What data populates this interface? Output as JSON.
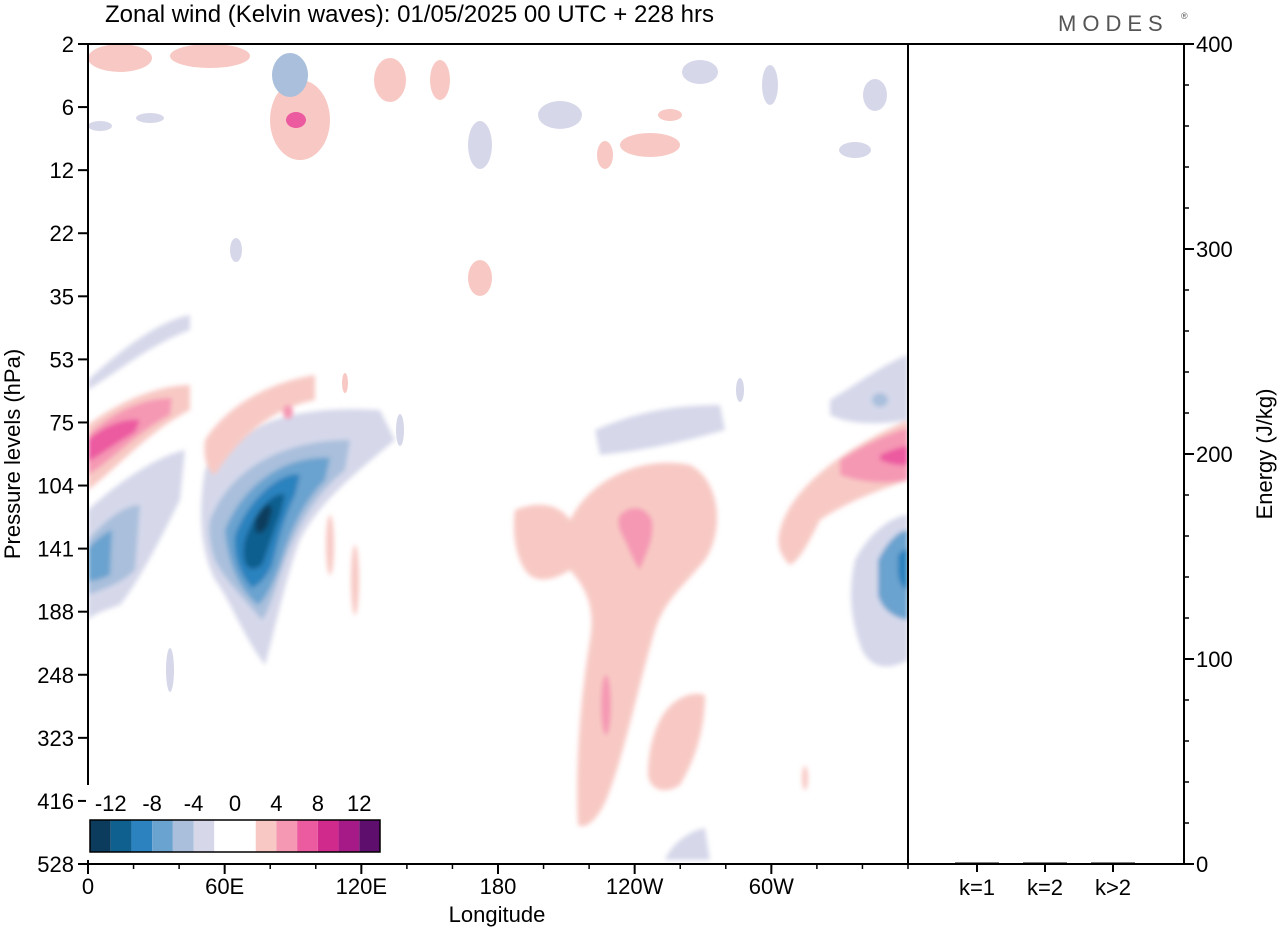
{
  "title": "Zonal wind (Kelvin waves):  01/05/2025  00 UTC  + 228 hrs",
  "brand": "MODES",
  "brand_mark": "®",
  "chart_data": [
    {
      "type": "heatmap",
      "xlabel": "Longitude",
      "ylabel": "Pressure levels (hPa)",
      "x_ticks": [
        "0",
        "60E",
        "120E",
        "180",
        "120W",
        "60W"
      ],
      "y_ticks": [
        "2",
        "6",
        "12",
        "22",
        "35",
        "53",
        "75",
        "104",
        "141",
        "188",
        "248",
        "323",
        "416",
        "528"
      ],
      "colorbar": {
        "labels": [
          "-12",
          "-8",
          "-4",
          "0",
          "4",
          "8",
          "12"
        ],
        "colors": [
          "#0b3c5d",
          "#0f5f8f",
          "#2b82be",
          "#6aa3cf",
          "#a9bfdc",
          "#d6d8ea",
          "#ffffff",
          "#ffffff",
          "#f8c9c4",
          "#f598b4",
          "#ec5aa0",
          "#cf2a8c",
          "#a51a86",
          "#5e0f6e"
        ]
      },
      "anomalies": [
        {
          "lon_start": 0,
          "lon_end": 35,
          "p_center": 90,
          "value": 9
        },
        {
          "lon_start": 0,
          "lon_end": 30,
          "p_center": 145,
          "value": -5
        },
        {
          "lon_start": 55,
          "lon_end": 95,
          "p_center": 130,
          "value": -11
        },
        {
          "lon_start": 55,
          "lon_end": 90,
          "p_center": 80,
          "value": 4
        },
        {
          "lon_start": 195,
          "lon_end": 255,
          "p_center": 160,
          "value": 5
        },
        {
          "lon_start": 340,
          "lon_end": 360,
          "p_center": 95,
          "value": 7
        },
        {
          "lon_start": 340,
          "lon_end": 360,
          "p_center": 150,
          "value": -6
        }
      ]
    },
    {
      "type": "bar",
      "categories": [
        "k=1",
        "k=2",
        "k>2"
      ],
      "values": [
        0.6,
        0.2,
        0.3
      ],
      "ylabel": "Energy (J/kg)",
      "ylim": [
        0,
        400
      ],
      "y_ticks": [
        "0",
        "100",
        "200",
        "300",
        "400"
      ]
    }
  ]
}
